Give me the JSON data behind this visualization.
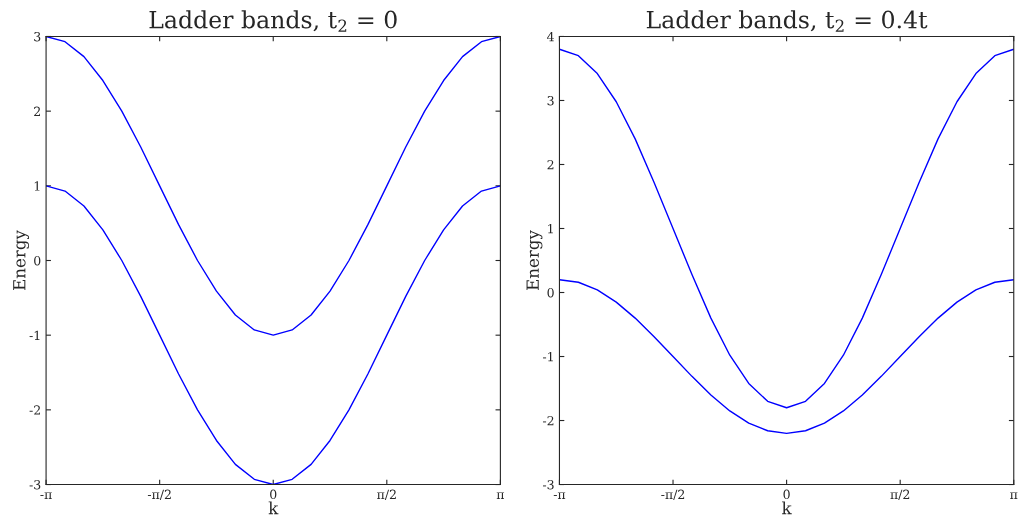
{
  "chart_data": [
    {
      "type": "line",
      "title": "Ladder bands, t$_{2}$ = 0",
      "xlabel": "k",
      "ylabel": "Energy",
      "x": [
        -3.1416,
        -2.8798,
        -2.618,
        -2.3562,
        -2.0944,
        -1.8326,
        -1.5708,
        -1.309,
        -1.0472,
        -0.7854,
        -0.5236,
        -0.2618,
        0,
        0.2618,
        0.5236,
        0.7854,
        1.0472,
        1.309,
        1.5708,
        1.8326,
        2.0944,
        2.3562,
        2.618,
        2.8798,
        3.1416
      ],
      "series": [
        {
          "color": "#0000ff",
          "values": [
            3,
            2.93,
            2.73,
            2.41,
            2,
            1.52,
            1,
            0.48,
            0,
            -0.41,
            -0.73,
            -0.93,
            -1,
            -0.93,
            -0.73,
            -0.41,
            0,
            0.48,
            1,
            1.52,
            2,
            2.41,
            2.73,
            2.93,
            3
          ]
        },
        {
          "color": "#0000ff",
          "values": [
            1,
            0.93,
            0.73,
            0.41,
            0,
            -0.48,
            -1,
            -1.52,
            -2,
            -2.41,
            -2.73,
            -2.93,
            -3,
            -2.93,
            -2.73,
            -2.41,
            -2,
            -1.52,
            -1,
            -0.48,
            0,
            0.41,
            0.73,
            0.93,
            1
          ]
        }
      ],
      "xlim": [
        -3.1416,
        3.1416
      ],
      "xticks": [
        {
          "value": -3.1416,
          "label": "-π"
        },
        {
          "value": -1.5708,
          "label": "-π/2"
        },
        0,
        {
          "value": 1.5708,
          "label": "π/2"
        },
        {
          "value": 3.1416,
          "label": "π"
        }
      ],
      "ylim": [
        -3,
        3
      ],
      "yticks": [
        -3,
        -2,
        -1,
        0,
        1,
        2,
        3
      ],
      "grid": false,
      "legend": false
    },
    {
      "type": "line",
      "title": "Ladder bands, t$_{2}$ = 0.4t",
      "xlabel": "k",
      "ylabel": "Energy",
      "x": [
        -3.1416,
        -2.8798,
        -2.618,
        -2.3562,
        -2.0944,
        -1.8326,
        -1.5708,
        -1.309,
        -1.0472,
        -0.7854,
        -0.5236,
        -0.2618,
        0,
        0.2618,
        0.5236,
        0.7854,
        1.0472,
        1.309,
        1.5708,
        1.8326,
        2.0944,
        2.3562,
        2.618,
        2.8798,
        3.1416
      ],
      "series": [
        {
          "color": "#0000ff",
          "values": [
            3.8,
            3.7,
            3.42,
            2.98,
            2.4,
            1.72,
            1,
            0.28,
            -0.4,
            -0.98,
            -1.42,
            -1.7,
            -1.8,
            -1.7,
            -1.42,
            -0.98,
            -0.4,
            0.28,
            1,
            1.72,
            2.4,
            2.98,
            3.42,
            3.7,
            3.8
          ]
        },
        {
          "color": "#0000ff",
          "values": [
            0.2,
            0.16,
            0.04,
            -0.15,
            -0.4,
            -0.69,
            -1,
            -1.31,
            -1.6,
            -1.85,
            -2.04,
            -2.16,
            -2.2,
            -2.16,
            -2.04,
            -1.85,
            -1.6,
            -1.31,
            -1,
            -0.69,
            -0.4,
            -0.15,
            0.04,
            0.16,
            0.2
          ]
        }
      ],
      "xlim": [
        -3.1416,
        3.1416
      ],
      "xticks": [
        {
          "value": -3.1416,
          "label": "-π"
        },
        {
          "value": -1.5708,
          "label": "-π/2"
        },
        0,
        {
          "value": 1.5708,
          "label": "π/2"
        },
        {
          "value": 3.1416,
          "label": "π"
        }
      ],
      "ylim": [
        -3,
        4
      ],
      "yticks": [
        -3,
        -2,
        -1,
        0,
        1,
        2,
        3,
        4
      ],
      "grid": false,
      "legend": false
    }
  ]
}
